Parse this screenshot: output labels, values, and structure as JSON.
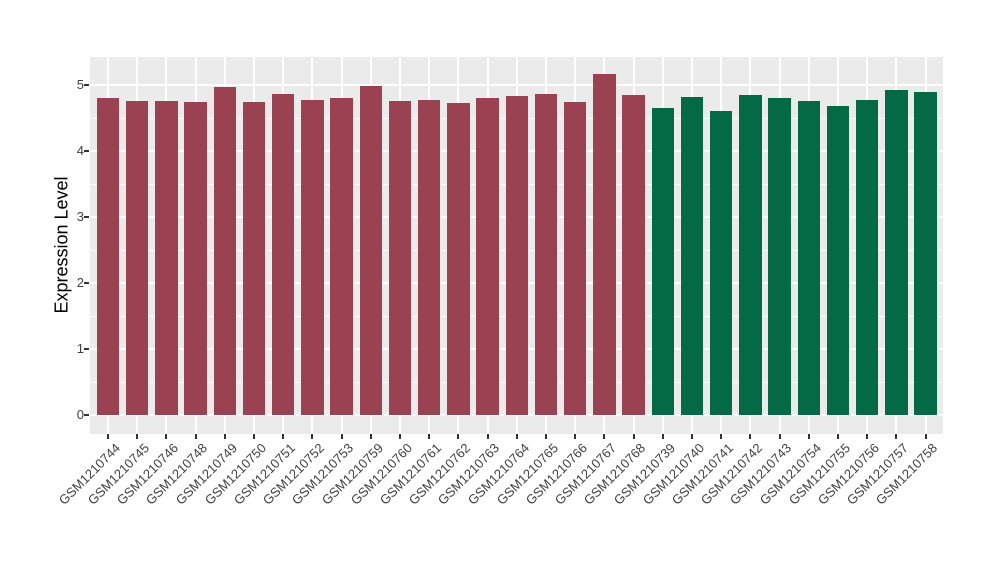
{
  "figure": {
    "background": "#FFFFFF",
    "panel_background": "#EBEBEB",
    "grid_color": "#FFFFFF",
    "axis_text_color": "#404040",
    "axis_title_color": "#000000",
    "tick_mark_color": "#333333"
  },
  "chart_data": {
    "type": "bar",
    "title": "",
    "xlabel": "",
    "ylabel": "Expression Level",
    "ylim": [
      -0.27,
      5.43
    ],
    "yticks": [
      "0",
      "1",
      "2",
      "3",
      "4",
      "5"
    ],
    "grid": "horizontal major at integers, minor at halves, vertical at category centers, all white on gray panel",
    "legend_position": "none",
    "categories": [
      "GSM1210744",
      "GSM1210745",
      "GSM1210746",
      "GSM1210748",
      "GSM1210749",
      "GSM1210750",
      "GSM1210751",
      "GSM1210752",
      "GSM1210753",
      "GSM1210759",
      "GSM1210760",
      "GSM1210761",
      "GSM1210762",
      "GSM1210763",
      "GSM1210764",
      "GSM1210765",
      "GSM1210766",
      "GSM1210767",
      "GSM1210768",
      "GSM1210739",
      "GSM1210740",
      "GSM1210741",
      "GSM1210742",
      "GSM1210743",
      "GSM1210754",
      "GSM1210755",
      "GSM1210756",
      "GSM1210757",
      "GSM1210758"
    ],
    "values": [
      4.81,
      4.76,
      4.76,
      4.74,
      4.97,
      4.74,
      4.86,
      4.77,
      4.8,
      4.99,
      4.76,
      4.78,
      4.72,
      4.8,
      4.84,
      4.86,
      4.75,
      5.17,
      4.85,
      4.65,
      4.82,
      4.61,
      4.85,
      4.81,
      4.76,
      4.68,
      4.77,
      4.93,
      4.89
    ],
    "groups": [
      {
        "color": "#9B4252",
        "count": 19
      },
      {
        "color": "#046A46",
        "count": 10
      }
    ]
  }
}
